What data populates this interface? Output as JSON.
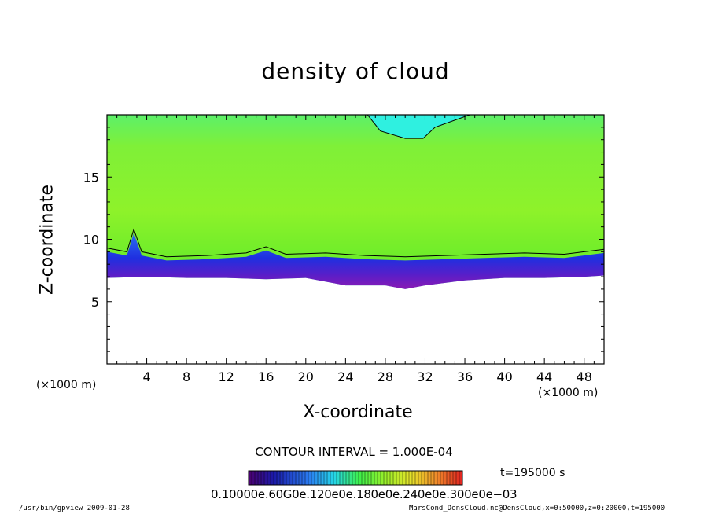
{
  "chart_data": {
    "type": "heatmap",
    "title": "density of cloud",
    "xlabel": "X-coordinate",
    "ylabel": "Z-coordinate",
    "x_unit": "(×1000 m)",
    "y_unit": "(×1000 m)",
    "xlim": [
      0,
      50
    ],
    "ylim": [
      0,
      20
    ],
    "xticks": [
      4,
      8,
      12,
      16,
      20,
      24,
      28,
      32,
      36,
      40,
      44,
      48
    ],
    "yticks": [
      5,
      10,
      15
    ],
    "cloud_base": [
      [
        0,
        6.9
      ],
      [
        4,
        7.0
      ],
      [
        8,
        6.9
      ],
      [
        12,
        6.9
      ],
      [
        16,
        6.8
      ],
      [
        20,
        6.9
      ],
      [
        24,
        6.3
      ],
      [
        28,
        6.3
      ],
      [
        30,
        6.0
      ],
      [
        32,
        6.3
      ],
      [
        36,
        6.7
      ],
      [
        40,
        6.9
      ],
      [
        44,
        6.9
      ],
      [
        48,
        7.0
      ],
      [
        50,
        7.1
      ]
    ],
    "contour_10_low": [
      [
        0,
        9.3
      ],
      [
        2,
        9.0
      ],
      [
        2.7,
        10.8
      ],
      [
        3.5,
        9.0
      ],
      [
        6,
        8.6
      ],
      [
        10,
        8.7
      ],
      [
        14,
        8.9
      ],
      [
        16,
        9.4
      ],
      [
        18,
        8.8
      ],
      [
        22,
        8.9
      ],
      [
        26,
        8.7
      ],
      [
        30,
        8.6
      ],
      [
        34,
        8.7
      ],
      [
        38,
        8.8
      ],
      [
        42,
        8.9
      ],
      [
        46,
        8.8
      ],
      [
        50,
        9.2
      ]
    ],
    "contour_high": [
      [
        26.2,
        20.0
      ],
      [
        27.5,
        18.7
      ],
      [
        30,
        18.1
      ],
      [
        31.8,
        18.1
      ],
      [
        33,
        19.0
      ],
      [
        36.5,
        20.0
      ]
    ],
    "colors": {
      "field_green": "#66f01a",
      "field_lightgreen": "#a6f52e",
      "upper_cyan": "#2ff0e0",
      "dense_blue": "#2244e6",
      "dense_violet": "#8a1ab4",
      "axis": "#000000"
    },
    "colorbar": {
      "label": "CONTOUR INTERVAL = 1.000E-04",
      "tick_text": "0.10000e.60G0e.120e0e.180e0e.240e0e.300e0e−03"
    },
    "time_label": "t=195000 s"
  },
  "footer": {
    "left": "/usr/bin/gpview  2009-01-28",
    "right": "MarsCond_DensCloud.nc@DensCloud,x=0:50000,z=0:20000,t=195000"
  }
}
